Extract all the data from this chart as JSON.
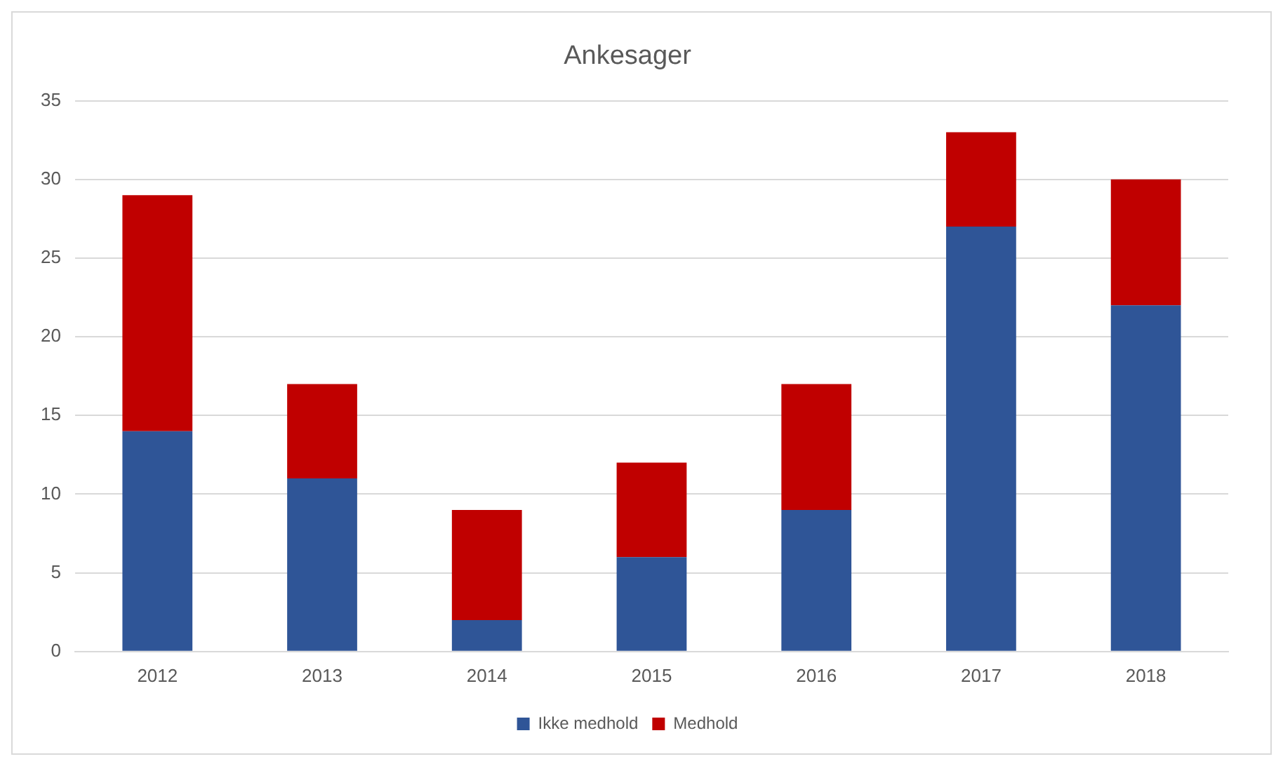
{
  "chart_data": {
    "type": "bar",
    "title": "Ankesager",
    "categories": [
      "2012",
      "2013",
      "2014",
      "2015",
      "2016",
      "2017",
      "2018"
    ],
    "series": [
      {
        "name": "Ikke medhold",
        "color": "#2f5597",
        "values": [
          14,
          11,
          2,
          6,
          9,
          27,
          22
        ]
      },
      {
        "name": "Medhold",
        "color": "#c00000",
        "values": [
          15,
          6,
          7,
          6,
          8,
          6,
          8
        ]
      }
    ],
    "stacked": true,
    "ylim": [
      0,
      35
    ],
    "yticks": [
      0,
      5,
      10,
      15,
      20,
      25,
      30,
      35
    ],
    "grid": "y",
    "legend": "bottom"
  }
}
